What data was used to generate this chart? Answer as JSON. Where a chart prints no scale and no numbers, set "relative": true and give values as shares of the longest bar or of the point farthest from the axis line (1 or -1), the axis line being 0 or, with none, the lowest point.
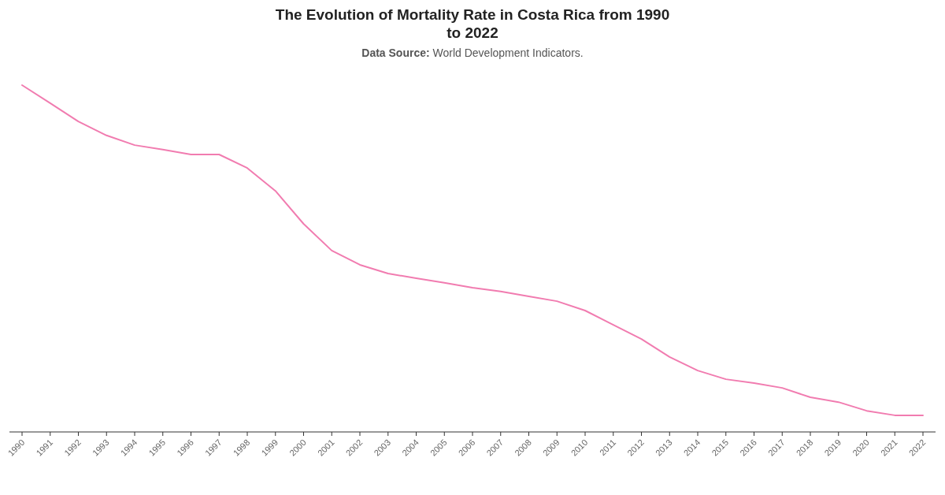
{
  "chart_data": {
    "type": "line",
    "title": "The Evolution of Mortality Rate in Costa Rica from 1990 to 2022",
    "subtitle": "Data Source: World Development Indicators.",
    "relative": true,
    "marker": "none",
    "line_style": "solid",
    "categories": [
      "1990",
      "1991",
      "1992",
      "1993",
      "1994",
      "1995",
      "1996",
      "1997",
      "1998",
      "1999",
      "2000",
      "2001",
      "2002",
      "2003",
      "2004",
      "2005",
      "2006",
      "2007",
      "2008",
      "2009",
      "2010",
      "2011",
      "2012",
      "2013",
      "2014",
      "2015",
      "2016",
      "2017",
      "2018",
      "2019",
      "2020",
      "2021",
      "2022"
    ],
    "series": [
      {
        "color": "#f17cb0",
        "values": [
          1.0,
          0.948,
          0.895,
          0.855,
          0.827,
          0.814,
          0.8,
          0.8,
          0.761,
          0.695,
          0.6,
          0.523,
          0.482,
          0.457,
          0.443,
          0.43,
          0.416,
          0.405,
          0.391,
          0.377,
          0.35,
          0.309,
          0.268,
          0.216,
          0.177,
          0.152,
          0.141,
          0.127,
          0.1,
          0.086,
          0.061,
          0.048,
          0.048
        ]
      }
    ]
  }
}
